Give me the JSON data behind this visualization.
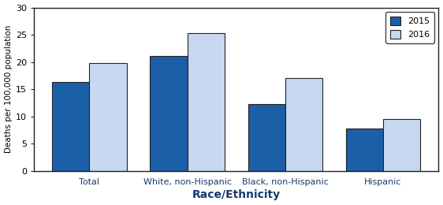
{
  "categories": [
    "Total",
    "White, non-Hispanic",
    "Black, non-Hispanic",
    "Hispanic"
  ],
  "values_2015": [
    16.3,
    21.1,
    12.2,
    7.7
  ],
  "values_2016": [
    19.8,
    25.3,
    17.1,
    9.5
  ],
  "color_2015": "#1a5fa8",
  "color_2016": "#c8d8f0",
  "legend_labels": [
    "2015",
    "2016"
  ],
  "xlabel": "Race/Ethnicity",
  "ylabel": "Deaths per 100,000 population",
  "ylim": [
    0,
    30
  ],
  "yticks": [
    0,
    5,
    10,
    15,
    20,
    25,
    30
  ],
  "bar_width": 0.38,
  "xtick_color": "#1a3a6b",
  "xlabel_color": "#1a3a6b",
  "background_color": "#ffffff",
  "edge_color": "#222222",
  "legend_edge_color": "#444444",
  "spine_color": "#222222"
}
